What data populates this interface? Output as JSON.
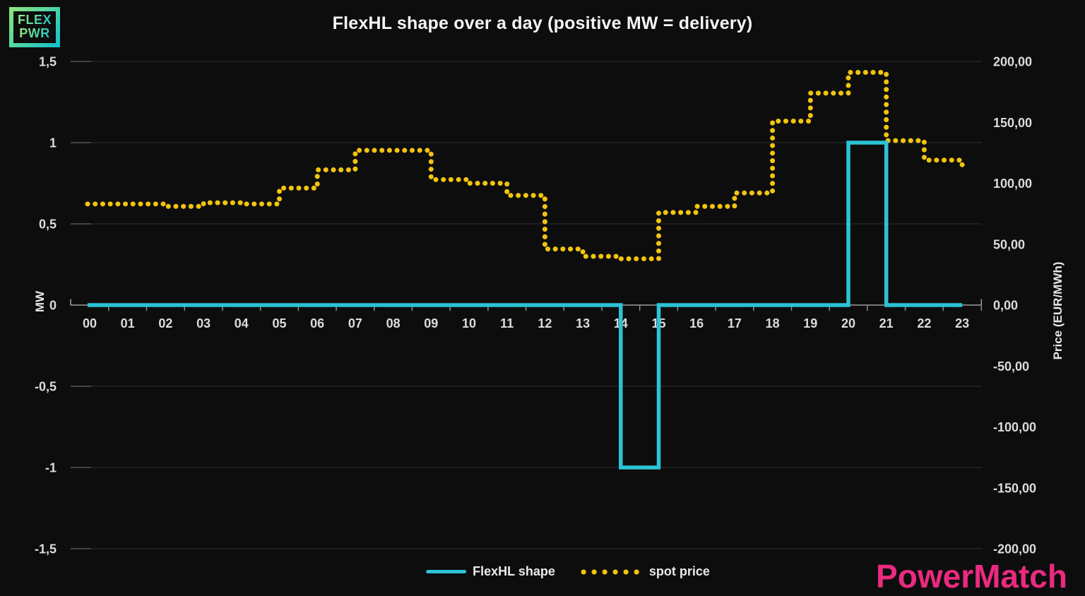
{
  "logo": {
    "line1": "FLEX",
    "line2": "PWR"
  },
  "header": {
    "title": "FlexHL shape over a day (positive MW = delivery)"
  },
  "brand": {
    "name": "PowerMatch"
  },
  "legend": {
    "flexhl_label": "FlexHL shape",
    "spot_label": "spot price"
  },
  "colors": {
    "background": "#0d0d0d",
    "flexhl": "#2cc3d5",
    "spot": "#f2c40e",
    "brand_pink": "#ea2a7f",
    "axis": "#9b9b9b",
    "grid": "#2e2e2e",
    "text": "#e6e6e6",
    "logo_gradient_start": "#8fe87b",
    "logo_gradient_end": "#0fc0cd"
  },
  "chart_data": {
    "type": "line",
    "title": "FlexHL shape over a day (positive MW = delivery)",
    "grid": true,
    "legend_position": "bottom",
    "x_labels": [
      "00",
      "01",
      "02",
      "03",
      "04",
      "05",
      "06",
      "07",
      "08",
      "09",
      "10",
      "11",
      "12",
      "13",
      "14",
      "15",
      "16",
      "17",
      "18",
      "19",
      "20",
      "21",
      "22",
      "23"
    ],
    "series": [
      {
        "name": "FlexHL shape",
        "axis": "left",
        "unit": "MW",
        "line_style": "solid-step",
        "color_key": "flexhl",
        "values": [
          0,
          0,
          0,
          0,
          0,
          0,
          0,
          0,
          0,
          0,
          0,
          0,
          0,
          0,
          -1,
          0,
          0,
          0,
          0,
          0,
          1,
          0,
          0,
          0
        ]
      },
      {
        "name": "spot price",
        "axis": "right",
        "unit": "EUR/MWh",
        "line_style": "dotted-step",
        "color_key": "spot",
        "values": [
          83,
          83,
          81,
          84,
          83,
          96,
          111,
          127,
          127,
          103,
          100,
          90,
          46,
          40,
          38,
          76,
          81,
          92,
          151,
          174,
          191,
          135,
          119,
          113
        ]
      }
    ],
    "left_axis": {
      "title": "MW",
      "min": -1.5,
      "max": 1.5,
      "ticks": [
        {
          "value": 1.5,
          "label": "1,5"
        },
        {
          "value": 1,
          "label": "1"
        },
        {
          "value": 0.5,
          "label": "0,5"
        },
        {
          "value": 0,
          "label": "0"
        },
        {
          "value": -0.5,
          "label": "-0,5"
        },
        {
          "value": -1,
          "label": "-1"
        },
        {
          "value": -1.5,
          "label": "-1,5"
        }
      ]
    },
    "right_axis": {
      "title": "Price (EUR/MWh)",
      "min": -200,
      "max": 200,
      "ticks": [
        {
          "value": 200,
          "label": "200,00"
        },
        {
          "value": 150,
          "label": "150,00"
        },
        {
          "value": 100,
          "label": "100,00"
        },
        {
          "value": 50,
          "label": "50,00"
        },
        {
          "value": 0,
          "label": "0,00"
        },
        {
          "value": -50,
          "label": "-50,00"
        },
        {
          "value": -100,
          "label": "-100,00"
        },
        {
          "value": -150,
          "label": "-150,00"
        },
        {
          "value": -200,
          "label": "-200,00"
        }
      ]
    }
  }
}
